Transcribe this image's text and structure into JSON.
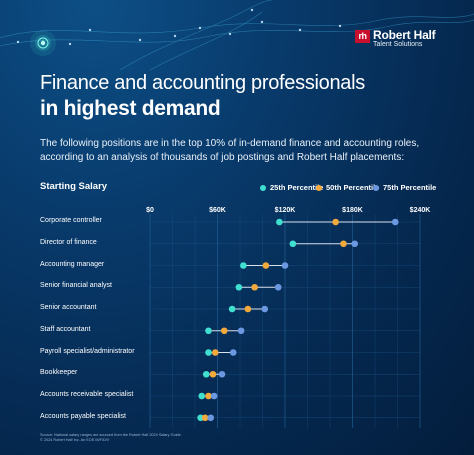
{
  "brand": {
    "mark": "rh",
    "name": "Robert Half",
    "subtitle": "Talent Solutions"
  },
  "header": {
    "title_line1": "Finance and accounting professionals",
    "title_line2": "in highest demand",
    "intro": "The following positions are in the top 10% of in-demand finance and accounting roles, according to an analysis of thousands of job postings and Robert Half placements:"
  },
  "footer": {
    "source_line1": "Source: National salary ranges are sourced from the Robert Half 2024 Salary Guide.",
    "source_line2": "© 2024 Robert Half Inc. An EOE M/F/D/V"
  },
  "decor": {
    "node_icon": "glowing-node-icon"
  },
  "colors": {
    "background": "#05284f",
    "p25": "#3fe0cf",
    "p50": "#f2a93b",
    "p75": "#6b98e0",
    "range_line": "#d7e1ee",
    "grid": "#1f5a8f",
    "brand_red": "#c8102e"
  },
  "chart_data": {
    "type": "dot-range",
    "title": "Starting Salary",
    "xlim": [
      0,
      240000
    ],
    "ticks": [
      0,
      60000,
      120000,
      180000,
      240000
    ],
    "tick_labels": [
      "$0",
      "$60K",
      "$120K",
      "$180K",
      "$240K"
    ],
    "grid": true,
    "legend_position": "top-right",
    "series": [
      {
        "name": "25th Percentile",
        "key": "p25"
      },
      {
        "name": "50th Percentile",
        "key": "p50"
      },
      {
        "name": "75th Percentile",
        "key": "p75"
      }
    ],
    "rows": [
      {
        "label": "Corporate controller",
        "p25": 115000,
        "p50": 165000,
        "p75": 218000
      },
      {
        "label": "Director of finance",
        "p25": 127000,
        "p50": 172000,
        "p75": 182000
      },
      {
        "label": "Accounting manager",
        "p25": 83000,
        "p50": 103000,
        "p75": 120000
      },
      {
        "label": "Senior financial analyst",
        "p25": 79000,
        "p50": 93000,
        "p75": 114000
      },
      {
        "label": "Senior accountant",
        "p25": 73000,
        "p50": 87000,
        "p75": 102000
      },
      {
        "label": "Staff accountant",
        "p25": 52000,
        "p50": 66000,
        "p75": 81000
      },
      {
        "label": "Payroll specialist/administrator",
        "p25": 52000,
        "p50": 58000,
        "p75": 74000
      },
      {
        "label": "Bookkeeper",
        "p25": 50000,
        "p50": 56000,
        "p75": 64000
      },
      {
        "label": "Accounts receivable specialist",
        "p25": 46000,
        "p50": 52000,
        "p75": 57000
      },
      {
        "label": "Accounts payable specialist",
        "p25": 45000,
        "p50": 49000,
        "p75": 54000
      }
    ]
  }
}
